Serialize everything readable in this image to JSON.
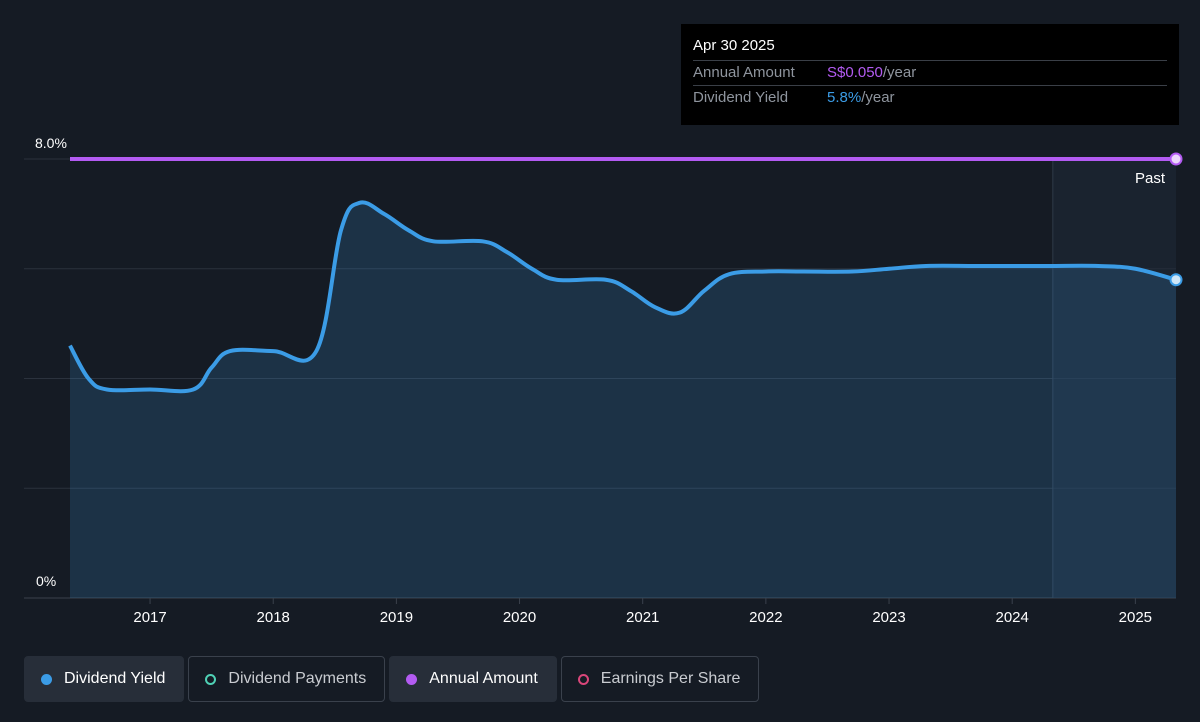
{
  "tooltip": {
    "date": "Apr 30 2025",
    "rows": [
      {
        "label": "Annual Amount",
        "value": "S$0.050",
        "unit": "/year"
      },
      {
        "label": "Dividend Yield",
        "value": "5.8%",
        "unit": "/year"
      }
    ]
  },
  "legend": [
    {
      "label": "Dividend Yield",
      "color": "#3b9ce6",
      "style": "filled",
      "active": true
    },
    {
      "label": "Dividend Payments",
      "color": "#4fd1b5",
      "style": "outline",
      "active": false
    },
    {
      "label": "Annual Amount",
      "color": "#b35bf2",
      "style": "filled",
      "active": true
    },
    {
      "label": "Earnings Per Share",
      "color": "#d9467a",
      "style": "outline",
      "active": false
    }
  ],
  "chart_data": {
    "type": "area",
    "ylim": [
      0,
      8
    ],
    "y_top_label": "8.0%",
    "y_bottom_label": "0%",
    "xlim": [
      2016.35,
      2025.33
    ],
    "x_ticks": [
      "2017",
      "2018",
      "2019",
      "2020",
      "2021",
      "2022",
      "2023",
      "2024",
      "2025"
    ],
    "past_label": "Past",
    "past_start": 2024.33,
    "colors": {
      "yield": "#3b9ce6",
      "amount": "#b35bf2"
    },
    "series": [
      {
        "name": "Dividend Yield",
        "x": [
          2016.35,
          2016.5,
          2016.65,
          2017.0,
          2017.35,
          2017.5,
          2017.65,
          2018.0,
          2018.35,
          2018.55,
          2018.7,
          2018.9,
          2019.1,
          2019.3,
          2019.7,
          2019.9,
          2020.1,
          2020.3,
          2020.7,
          2020.9,
          2021.1,
          2021.3,
          2021.5,
          2021.7,
          2022.0,
          2022.3,
          2022.7,
          2023.0,
          2023.3,
          2023.7,
          2024.0,
          2024.3,
          2024.7,
          2025.0,
          2025.33
        ],
        "values": [
          4.6,
          4.0,
          3.8,
          3.8,
          3.8,
          4.2,
          4.5,
          4.5,
          4.5,
          6.7,
          7.2,
          7.0,
          6.7,
          6.5,
          6.5,
          6.3,
          6.0,
          5.8,
          5.8,
          5.6,
          5.3,
          5.2,
          5.6,
          5.9,
          5.95,
          5.95,
          5.95,
          6.0,
          6.05,
          6.05,
          6.05,
          6.05,
          6.05,
          6.0,
          5.8
        ]
      },
      {
        "name": "Annual Amount",
        "x": [
          2016.35,
          2025.33
        ],
        "values": [
          8.0,
          8.0
        ]
      }
    ]
  }
}
